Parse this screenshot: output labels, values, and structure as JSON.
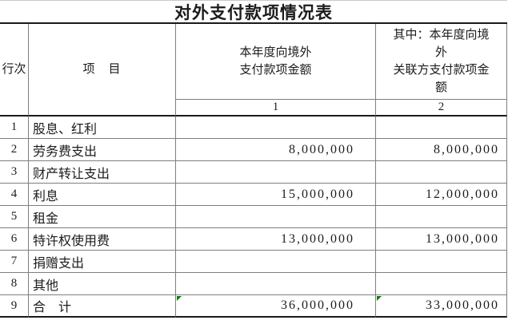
{
  "table": {
    "title": "对外支付款项情况表",
    "header": {
      "row_no": "行次",
      "item": "项　目",
      "col1": "本年度向境外\n支付款项金额",
      "col2": "其中：本年度向境\n外\n关联方支付款项金\n额",
      "col1_index": "1",
      "col2_index": "2"
    },
    "rows": [
      {
        "no": "1",
        "item": "股息、红利",
        "col1": "",
        "col2": ""
      },
      {
        "no": "2",
        "item": "劳务费支出",
        "col1": "8,000,000",
        "col2": "8,000,000"
      },
      {
        "no": "3",
        "item": "财产转让支出",
        "col1": "",
        "col2": ""
      },
      {
        "no": "4",
        "item": "利息",
        "col1": "15,000,000",
        "col2": "12,000,000"
      },
      {
        "no": "5",
        "item": "租金",
        "col1": "",
        "col2": ""
      },
      {
        "no": "6",
        "item": "特许权使用费",
        "col1": "13,000,000",
        "col2": "13,000,000"
      },
      {
        "no": "7",
        "item": "捐赠支出",
        "col1": "",
        "col2": ""
      },
      {
        "no": "8",
        "item": "其他",
        "col1": "",
        "col2": ""
      },
      {
        "no": "9",
        "item": "合　计",
        "col1": "36,000,000",
        "col2": "33,000,000"
      }
    ],
    "icons": {
      "formula_indicator": "green-triangle"
    },
    "colors": {
      "grid_line": "#7f7f7f",
      "heavy_line": "#1a1a1a",
      "indicator_green": "#008000",
      "text": "#1c1c1c",
      "background": "#ffffff"
    }
  }
}
